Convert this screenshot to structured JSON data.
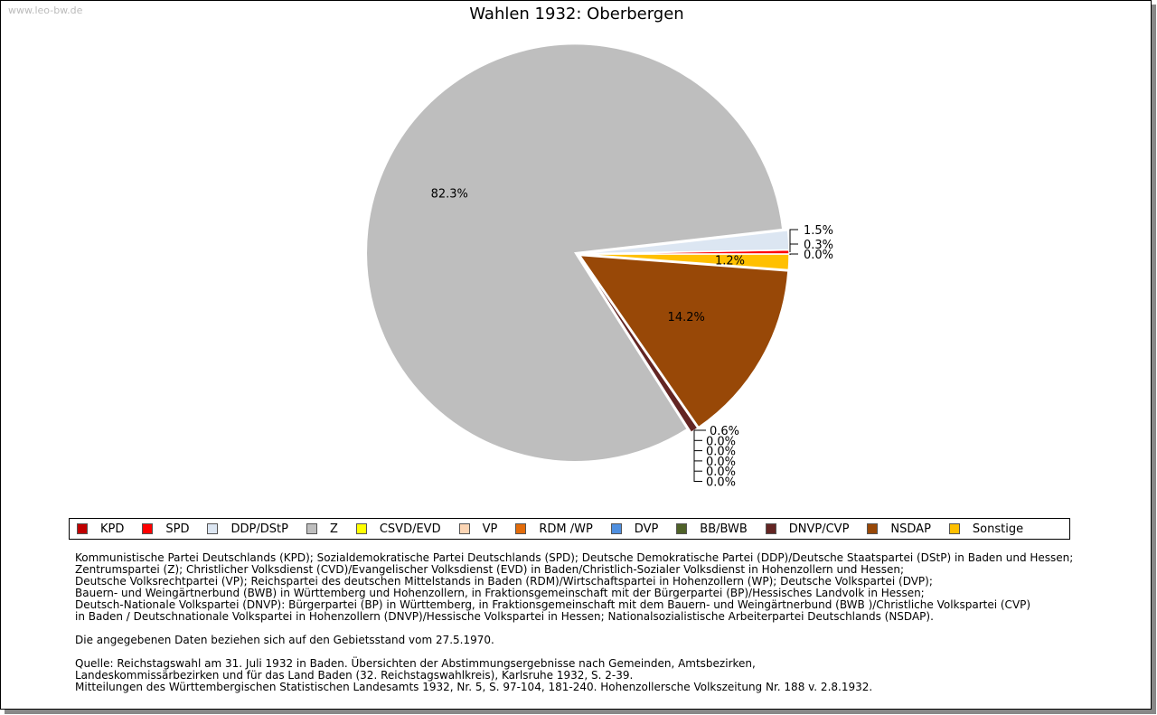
{
  "site": "www.leo-bw.de",
  "chart_data": {
    "type": "pie",
    "title": "Wahlen 1932: Oberbergen",
    "legend_position": "bottom",
    "categories": [
      "KPD",
      "SPD",
      "DDP/DStP",
      "Z",
      "CSVD/EVD",
      "VP",
      "RDM /WP",
      "DVP",
      "BB/BWB",
      "DNVP/CVP",
      "NSDAP",
      "Sonstige"
    ],
    "values": [
      0.0,
      0.3,
      1.5,
      82.3,
      0.0,
      0.0,
      0.0,
      0.0,
      0.0,
      0.6,
      14.2,
      1.2
    ],
    "labels": [
      "0.0%",
      "0.3%",
      "1.5%",
      "82.3%",
      "0.0%",
      "0.0%",
      "0.0%",
      "0.0%",
      "0.0%",
      "0.6%",
      "14.2%",
      "1.2%"
    ],
    "colors": [
      "#c00000",
      "#ff0000",
      "#dce6f2",
      "#bebebe",
      "#ffff00",
      "#fcd5b4",
      "#e26b0a",
      "#4f8fdf",
      "#4f6228",
      "#632523",
      "#984807",
      "#ffc000"
    ]
  },
  "notes": [
    "Kommunistische Partei Deutschlands (KPD); Sozialdemokratische Partei Deutschlands (SPD); Deutsche Demokratische Partei (DDP)/Deutsche Staatspartei (DStP) in Baden und Hessen;",
    "Zentrumspartei (Z); Christlicher Volksdienst (CVD)/Evangelischer Volksdienst (EVD) in Baden/Christlich-Sozialer Volksdienst in Hohenzollern und Hessen;",
    "Deutsche Volksrechtpartei (VP); Reichspartei des deutschen Mittelstands in Baden (RDM)/Wirtschaftspartei in Hohenzollern (WP); Deutsche Volkspartei (DVP);",
    "Bauern- und Weingärtnerbund (BWB) in Württemberg und Hohenzollern, in Fraktionsgemeinschaft mit der Bürgerpartei (BP)/Hessisches Landvolk in Hessen;",
    "Deutsch-Nationale Volkspartei (DNVP): Bürgerpartei (BP) in Württemberg, in Fraktionsgemeinschaft mit dem Bauern- und Weingärtnerbund (BWB )/Christliche Volkspartei (CVP)",
    "in Baden / Deutschnationale Volkspartei in Hohenzollern (DNVP)/Hessische Volkspartei in Hessen; Nationalsozialistische Arbeiterpartei Deutschlands (NSDAP).",
    "",
    "Die angegebenen Daten beziehen sich auf den Gebietsstand vom 27.5.1970.",
    "",
    "Quelle: Reichstagswahl am 31. Juli 1932 in Baden. Übersichten der Abstimmungsergebnisse nach Gemeinden, Amtsbezirken,",
    "Landeskommissärbezirken und für das Land Baden (32. Reichstagswahlkreis), Karlsruhe 1932, S. 2-39.",
    "Mitteilungen des Württembergischen Statistischen Landesamts 1932, Nr. 5, S. 97-104, 181-240. Hohenzollersche Volkszeitung Nr. 188 v. 2.8.1932."
  ]
}
